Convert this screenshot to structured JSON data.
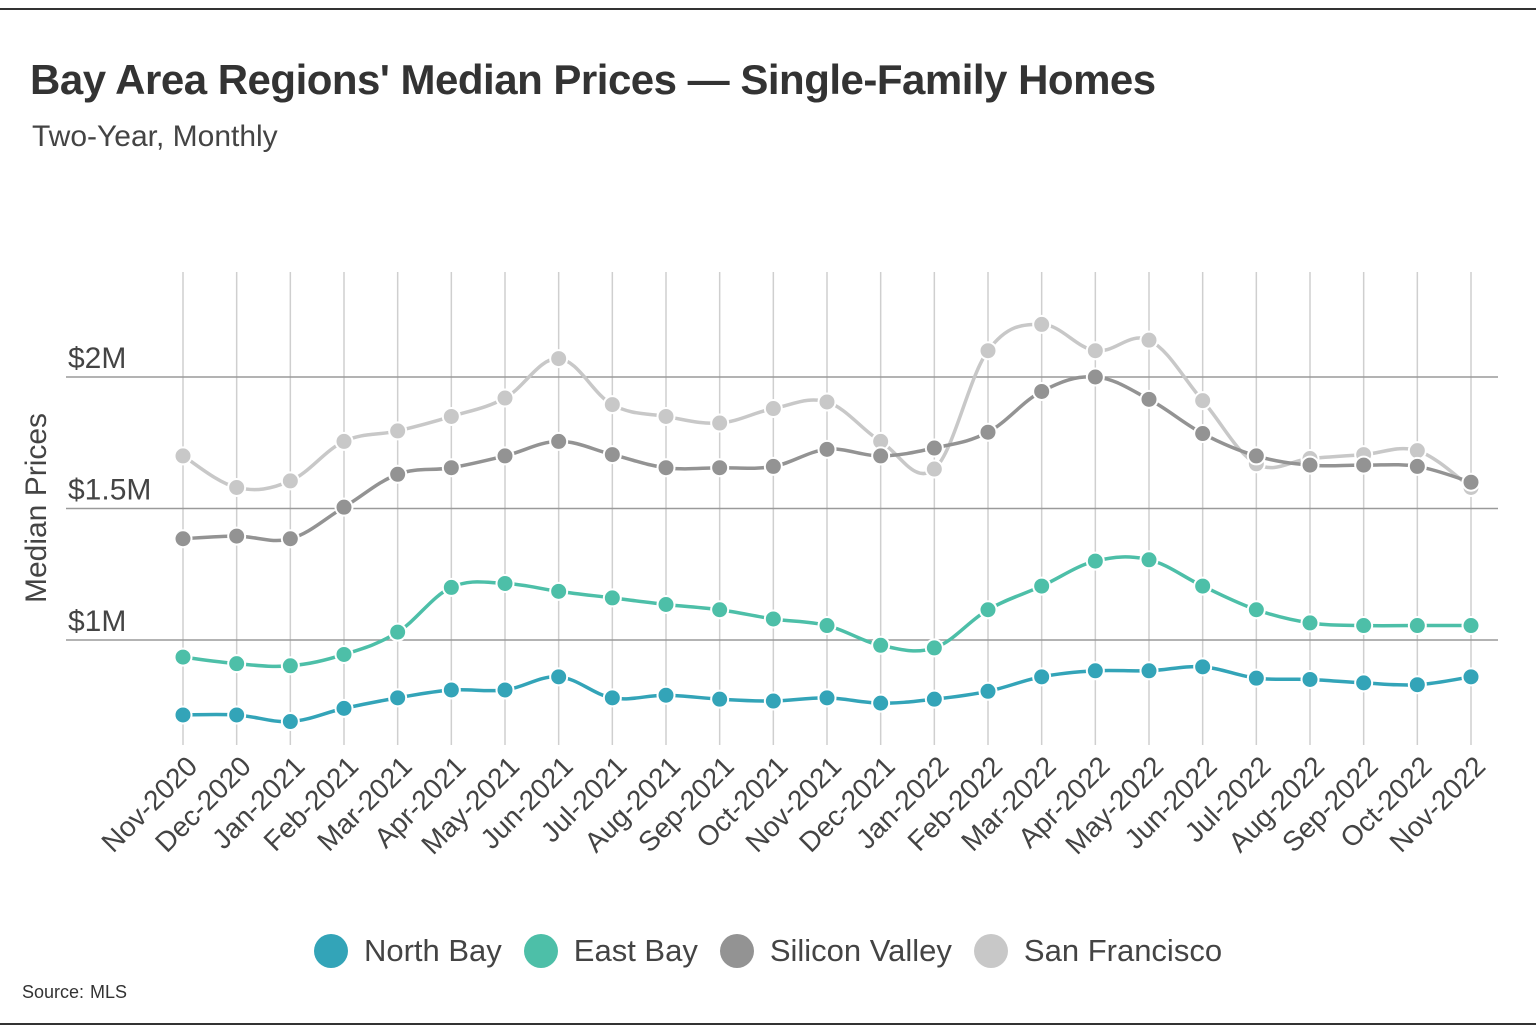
{
  "title": "Bay Area Regions' Median Prices — Single-Family Homes",
  "subtitle": "Two-Year, Monthly",
  "source": {
    "label": "Source:",
    "value": "MLS"
  },
  "chart_data": {
    "type": "line",
    "title": "Bay Area Regions' Median Prices — Single-Family Homes",
    "subtitle": "Two-Year, Monthly",
    "xlabel": "",
    "ylabel": "Median Prices",
    "ylim": [
      600000,
      2450000
    ],
    "yticks": [
      1000000,
      1500000,
      2000000
    ],
    "ytick_labels": [
      "$1M",
      "$1.5M",
      "$2M"
    ],
    "grid": true,
    "legend_position": "bottom",
    "categories": [
      "Nov-2020",
      "Dec-2020",
      "Jan-2021",
      "Feb-2021",
      "Mar-2021",
      "Apr-2021",
      "May-2021",
      "Jun-2021",
      "Jul-2021",
      "Aug-2021",
      "Sep-2021",
      "Oct-2021",
      "Nov-2021",
      "Dec-2021",
      "Jan-2022",
      "Feb-2022",
      "Mar-2022",
      "Apr-2022",
      "May-2022",
      "Jun-2022",
      "Jul-2022",
      "Aug-2022",
      "Sep-2022",
      "Oct-2022",
      "Nov-2022"
    ],
    "series": [
      {
        "name": "San Francisco",
        "color": "#c8c8c8",
        "values": [
          1700000,
          1580000,
          1605000,
          1755000,
          1795000,
          1850000,
          1920000,
          2070000,
          1895000,
          1850000,
          1825000,
          1880000,
          1905000,
          1755000,
          1650000,
          2100000,
          2200000,
          2100000,
          2140000,
          1910000,
          1670000,
          1690000,
          1705000,
          1720000,
          1580000
        ]
      },
      {
        "name": "Silicon Valley",
        "color": "#939393",
        "values": [
          1385000,
          1395000,
          1385000,
          1505000,
          1630000,
          1655000,
          1700000,
          1755000,
          1705000,
          1655000,
          1655000,
          1660000,
          1725000,
          1700000,
          1730000,
          1790000,
          1945000,
          2000000,
          1915000,
          1785000,
          1700000,
          1665000,
          1665000,
          1660000,
          1600000
        ]
      },
      {
        "name": "East Bay",
        "color": "#4dbfa8",
        "values": [
          935000,
          910000,
          902000,
          945000,
          1030000,
          1200000,
          1215000,
          1185000,
          1160000,
          1135000,
          1115000,
          1080000,
          1055000,
          980000,
          970000,
          1115000,
          1205000,
          1300000,
          1305000,
          1205000,
          1115000,
          1065000,
          1055000,
          1055000,
          1055000
        ]
      },
      {
        "name": "North Bay",
        "color": "#33a4b8",
        "values": [
          715000,
          715000,
          690000,
          740000,
          780000,
          810000,
          810000,
          860000,
          780000,
          790000,
          775000,
          768000,
          780000,
          760000,
          775000,
          805000,
          860000,
          883000,
          883000,
          898000,
          855000,
          850000,
          837000,
          830000,
          860000
        ]
      }
    ]
  },
  "legend": [
    {
      "label": "North Bay",
      "color": "#33a4b8"
    },
    {
      "label": "East Bay",
      "color": "#4dbfa8"
    },
    {
      "label": "Silicon Valley",
      "color": "#939393"
    },
    {
      "label": "San Francisco",
      "color": "#c8c8c8"
    }
  ]
}
